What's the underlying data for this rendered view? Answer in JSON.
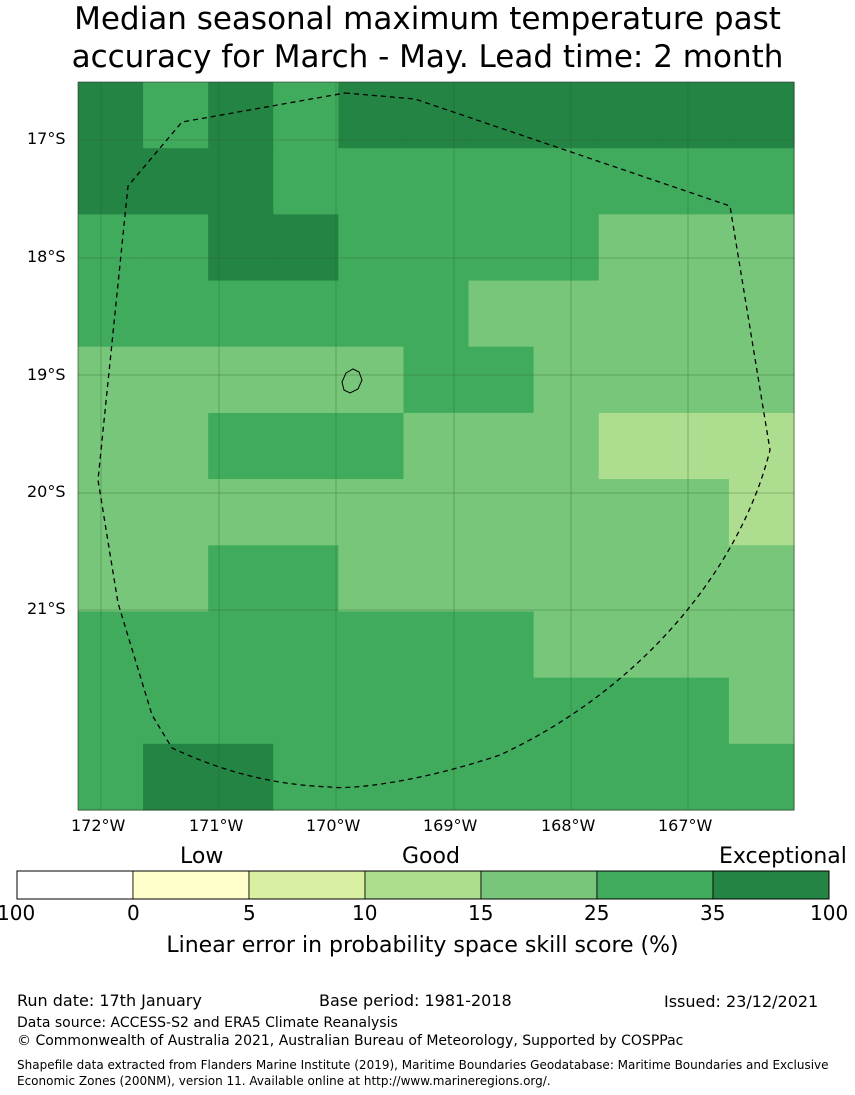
{
  "title": {
    "line1": "Median seasonal maximum temperature past",
    "line2": "accuracy for March - May. Lead time: 2 month"
  },
  "map": {
    "lat_labels": [
      "17°S",
      "18°S",
      "19°S",
      "20°S",
      "21°S"
    ],
    "lon_labels": [
      "172°W",
      "171°W",
      "170°W",
      "169°W",
      "168°W",
      "167°W"
    ],
    "grid": [
      [
        6,
        5,
        6,
        5,
        6,
        6,
        6,
        6,
        6,
        6,
        6
      ],
      [
        6,
        6,
        6,
        5,
        5,
        5,
        5,
        5,
        5,
        5,
        5
      ],
      [
        5,
        5,
        6,
        6,
        5,
        5,
        5,
        5,
        4,
        4,
        4
      ],
      [
        5,
        5,
        5,
        5,
        5,
        5,
        4,
        4,
        4,
        4,
        4
      ],
      [
        4,
        4,
        4,
        4,
        4,
        5,
        5,
        4,
        4,
        4,
        4
      ],
      [
        4,
        4,
        5,
        5,
        5,
        4,
        4,
        4,
        3,
        3,
        3
      ],
      [
        4,
        4,
        4,
        4,
        4,
        4,
        4,
        4,
        4,
        4,
        3
      ],
      [
        4,
        4,
        5,
        5,
        4,
        4,
        4,
        4,
        4,
        4,
        4
      ],
      [
        5,
        5,
        5,
        5,
        5,
        5,
        5,
        4,
        4,
        4,
        4
      ],
      [
        5,
        5,
        5,
        5,
        5,
        5,
        5,
        5,
        5,
        5,
        4
      ],
      [
        5,
        6,
        6,
        5,
        5,
        5,
        5,
        5,
        5,
        5,
        5
      ]
    ]
  },
  "legend": {
    "categories": [
      "Low",
      "Good",
      "Exceptional"
    ],
    "colors": [
      "#ffffff",
      "#ffffcc",
      "#d9f0a3",
      "#addd8e",
      "#78c679",
      "#41ab5d",
      "#238443"
    ],
    "ticks": [
      "100",
      "0",
      "5",
      "10",
      "15",
      "25",
      "35",
      "100"
    ],
    "label": "Linear error in probability space skill score (%)"
  },
  "footer": {
    "run_date": "Run date: 17th January",
    "base_period": "Base period: 1981-2018",
    "issued": "Issued: 23/12/2021",
    "data_source": "Data source: ACCESS-S2 and ERA5 Climate Reanalysis",
    "copyright": "© Commonwealth of Australia 2021, Australian Bureau of Meteorology, Supported by COSPPac",
    "shapefile": "Shapefile data extracted from Flanders Marine Institute (2019), Maritime Boundaries Geodatabase: Maritime Boundaries and Exclusive Economic Zones (200NM), version 11. Available online at http://www.marineregions.org/."
  }
}
